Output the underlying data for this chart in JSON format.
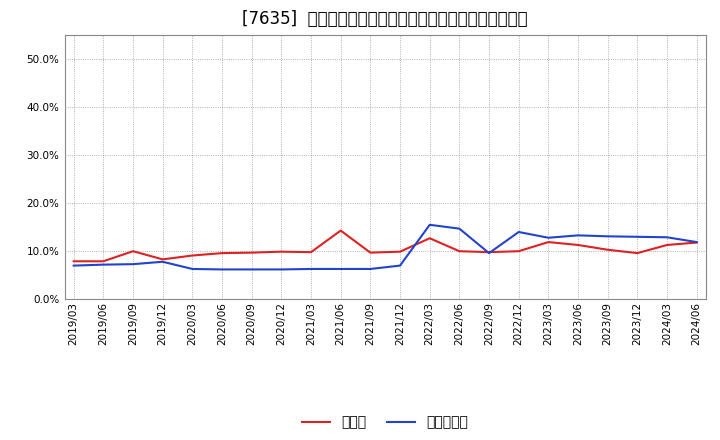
{
  "title": "[7635]  現頲金、有利子負債の総資産に対する比率の推移",
  "ylim": [
    0.0,
    0.55
  ],
  "yticks": [
    0.0,
    0.1,
    0.2,
    0.3,
    0.4,
    0.5
  ],
  "background_color": "#ffffff",
  "plot_bg_color": "#ffffff",
  "grid_color": "#999999",
  "x_labels": [
    "2019/03",
    "2019/06",
    "2019/09",
    "2019/12",
    "2020/03",
    "2020/06",
    "2020/09",
    "2020/12",
    "2021/03",
    "2021/06",
    "2021/09",
    "2021/12",
    "2022/03",
    "2022/06",
    "2022/09",
    "2022/12",
    "2023/03",
    "2023/06",
    "2023/09",
    "2023/12",
    "2024/03",
    "2024/06"
  ],
  "cash": [
    0.079,
    0.079,
    0.1,
    0.083,
    0.091,
    0.096,
    0.097,
    0.099,
    0.098,
    0.143,
    0.097,
    0.099,
    0.127,
    0.1,
    0.098,
    0.1,
    0.119,
    0.113,
    0.103,
    0.096,
    0.113,
    0.118
  ],
  "debt": [
    0.07,
    0.072,
    0.073,
    0.078,
    0.063,
    0.062,
    0.062,
    0.062,
    0.063,
    0.063,
    0.063,
    0.07,
    0.155,
    0.147,
    0.096,
    0.14,
    0.128,
    0.133,
    0.131,
    0.13,
    0.129,
    0.119
  ],
  "cash_color": "#dd2222",
  "debt_color": "#2244cc",
  "legend_cash": "現頲金",
  "legend_debt": "有利子負債",
  "title_fontsize": 12,
  "tick_fontsize": 7.5,
  "legend_fontsize": 10
}
